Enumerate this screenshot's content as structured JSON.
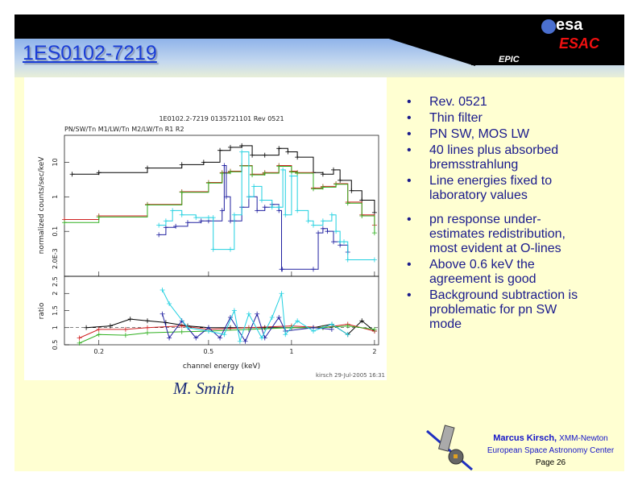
{
  "slide": {
    "title": "1ES0102-7219",
    "section": "EPIC",
    "logo_esa": "esa",
    "logo_esac": "ESAC",
    "credit": "M. Smith",
    "bullets": [
      "Rev. 0521",
      "Thin filter",
      "PN SW, MOS LW",
      "40 lines plus absorbed bremsstrahlung",
      "Line energies fixed to laboratory values",
      "pn response under-estimates redistribution, most evident at O-lines",
      "Above 0.6 keV the agreement is good",
      "Background subtraction is problematic for pn SW mode"
    ],
    "footer": {
      "author": "Marcus Kirsch,",
      "mission": "XMM-Newton",
      "org": "European Space Astronomy Center",
      "page": "Page 26"
    }
  },
  "chart_data": {
    "type": "line",
    "title": "1E0102.2-7219 0135721101 Rev 0521",
    "subtitle": "PN/SW/Tn M1/LW/Tn M2/LW/Tn R1 R2",
    "xlabel": "channel energy (keV)",
    "ylabel_top": "normalized counts/sec/keV",
    "ylabel_bottom": "ratio",
    "xscale": "log",
    "xlim": [
      0.15,
      2.07
    ],
    "ylim_top": [
      0.005,
      60
    ],
    "ylim_bottom": [
      0.5,
      2.5
    ],
    "xticks": [
      "0.2",
      "0.5",
      "1",
      "2"
    ],
    "xtick_values": [
      0.2,
      0.5,
      1,
      2
    ],
    "yticks_top": [
      "10",
      "1",
      "0.1",
      "2.0E-3"
    ],
    "ytick_top_values": [
      10,
      1,
      0.1,
      0.005
    ],
    "yticks_bottom": [
      "0.5",
      "1",
      "1.5",
      "2",
      "2.5"
    ],
    "ytick_bottom_values": [
      0.5,
      1,
      1.5,
      2,
      2.5
    ],
    "footnote": "kirsch 29-Jul-2005 16:31",
    "series": [
      {
        "name": "PN",
        "color": "#000000",
        "x": [
          0.16,
          0.2,
          0.3,
          0.4,
          0.48,
          0.55,
          0.6,
          0.66,
          0.72,
          0.8,
          0.9,
          0.97,
          1.05,
          1.2,
          1.3,
          1.42,
          1.5,
          1.65,
          1.8,
          2.0
        ],
        "y": [
          4.5,
          5,
          6.8,
          8.5,
          10,
          22,
          27,
          30,
          16,
          16,
          25,
          20,
          14,
          5,
          4.5,
          6,
          3,
          1.5,
          0.8,
          0.35
        ]
      },
      {
        "name": "MOS1",
        "color": "#d02020",
        "x": [
          0.15,
          0.2,
          0.3,
          0.4,
          0.5,
          0.56,
          0.6,
          0.66,
          0.72,
          0.8,
          0.9,
          1.0,
          1.05,
          1.2,
          1.3,
          1.45,
          1.6,
          1.8,
          2.0
        ],
        "y": [
          0.22,
          0.28,
          0.6,
          1.4,
          2.6,
          5,
          5.5,
          8,
          4.5,
          5,
          8,
          5.5,
          5,
          1.8,
          2,
          2.4,
          0.7,
          0.3,
          0.15
        ]
      },
      {
        "name": "MOS2",
        "color": "#30b020",
        "x": [
          0.15,
          0.2,
          0.3,
          0.4,
          0.5,
          0.56,
          0.6,
          0.66,
          0.72,
          0.8,
          0.9,
          1.0,
          1.05,
          1.2,
          1.3,
          1.45,
          1.6,
          1.8,
          2.0
        ],
        "y": [
          0.18,
          0.26,
          0.58,
          1.35,
          2.5,
          4.8,
          5.3,
          7.8,
          4.3,
          4.8,
          7.6,
          5.2,
          4.8,
          1.7,
          1.9,
          2.3,
          0.65,
          0.28,
          0.09
        ]
      },
      {
        "name": "RGS1",
        "color": "#2020a0",
        "x": [
          0.33,
          0.35,
          0.38,
          0.42,
          0.47,
          0.5,
          0.56,
          0.57,
          0.58,
          0.6,
          0.62,
          0.66,
          0.7,
          0.75,
          0.8,
          0.85,
          0.9,
          0.92,
          0.925,
          1.2,
          1.25,
          1.3,
          1.35,
          1.42,
          1.5,
          1.6
        ],
        "y": [
          0.08,
          0.13,
          0.14,
          0.18,
          0.2,
          0.2,
          0.4,
          8,
          1,
          0.2,
          0.2,
          0.5,
          1,
          0.4,
          0.5,
          0.6,
          0.4,
          0.008,
          0.008,
          0.008,
          0.09,
          0.12,
          0.1,
          0.05,
          0.04,
          0.025
        ]
      },
      {
        "name": "RGS2",
        "color": "#20d0e0",
        "x": [
          0.33,
          0.35,
          0.37,
          0.4,
          0.45,
          0.5,
          0.52,
          0.52,
          0.6,
          0.62,
          0.66,
          0.7,
          0.73,
          0.78,
          0.85,
          0.9,
          0.93,
          0.95,
          1.0,
          1.05,
          1.15,
          1.2,
          1.3,
          1.4,
          1.45,
          1.5,
          1.55,
          1.6,
          2.0
        ],
        "y": [
          0.15,
          0.2,
          0.4,
          0.3,
          0.25,
          0.25,
          0.25,
          0.03,
          0.03,
          0.3,
          20,
          1,
          2,
          0.8,
          0.5,
          0.5,
          6,
          0.3,
          4,
          0.4,
          0.2,
          0.15,
          0.2,
          0.3,
          0.1,
          0.05,
          0.05,
          0.015,
          0.015
        ]
      }
    ],
    "ratio_series": [
      {
        "name": "PN",
        "color": "#000000",
        "x": [
          0.18,
          0.22,
          0.26,
          0.3,
          0.35,
          0.42,
          0.5,
          0.6,
          0.8,
          1.0,
          1.2,
          1.4,
          1.6,
          1.8,
          2.0
        ],
        "y": [
          1.0,
          1.05,
          1.25,
          1.2,
          1.15,
          1.05,
          1.0,
          1.0,
          1.0,
          1.0,
          1.0,
          1.1,
          0.8,
          1.2,
          0.9
        ]
      },
      {
        "name": "MOS1",
        "color": "#d02020",
        "x": [
          0.17,
          0.2,
          0.25,
          0.3,
          0.4,
          0.5,
          0.7,
          1.0,
          1.3,
          1.6,
          2.0
        ],
        "y": [
          0.7,
          0.95,
          0.95,
          1.0,
          1.05,
          0.95,
          1.0,
          1.05,
          1.0,
          1.1,
          0.9
        ]
      },
      {
        "name": "MOS2",
        "color": "#30b020",
        "x": [
          0.17,
          0.2,
          0.25,
          0.3,
          0.4,
          0.5,
          0.7,
          1.0,
          1.3,
          1.6,
          2.0
        ],
        "y": [
          0.55,
          0.8,
          0.78,
          0.85,
          0.88,
          0.9,
          0.95,
          1.0,
          1.0,
          1.05,
          0.95
        ]
      },
      {
        "name": "RGS1",
        "color": "#2020a0",
        "x": [
          0.34,
          0.36,
          0.4,
          0.45,
          0.5,
          0.55,
          0.6,
          0.68,
          0.75,
          0.8,
          0.9,
          0.95,
          1.2,
          1.4
        ],
        "y": [
          1.4,
          0.7,
          1.2,
          0.7,
          1.0,
          0.7,
          1.3,
          0.6,
          1.4,
          0.7,
          1.3,
          0.9,
          1.0,
          0.95
        ]
      },
      {
        "name": "RGS2",
        "color": "#20d0e0",
        "x": [
          0.34,
          0.36,
          0.42,
          0.5,
          0.57,
          0.62,
          0.65,
          0.7,
          0.78,
          0.85,
          0.92,
          0.95,
          1.05,
          1.2,
          1.4,
          1.6
        ],
        "y": [
          2.1,
          1.7,
          1.0,
          0.9,
          0.8,
          1.5,
          0.6,
          1.4,
          0.7,
          1.3,
          2.0,
          0.8,
          1.2,
          0.9,
          1.1,
          0.8
        ]
      }
    ]
  }
}
